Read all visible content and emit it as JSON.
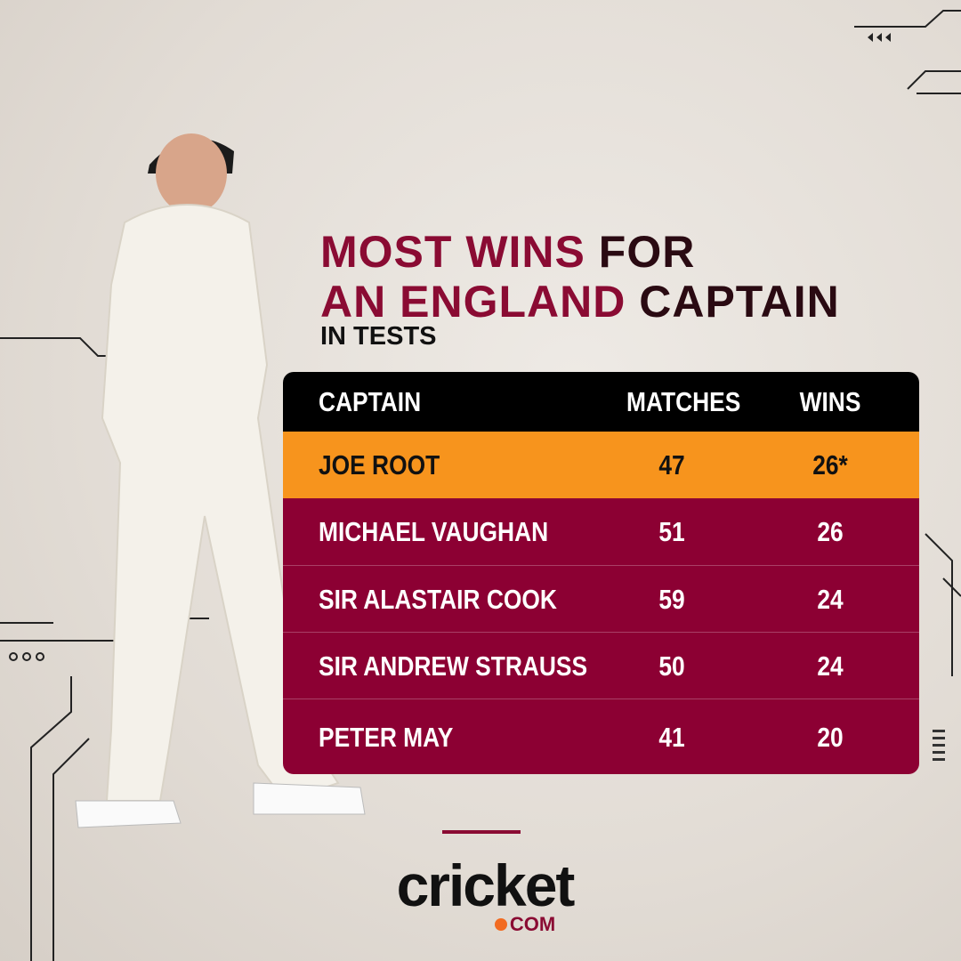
{
  "title": {
    "lines": [
      [
        {
          "text": "MOST WINS",
          "color": "#8a0b33"
        },
        {
          "text": "FOR",
          "color": "#2a0a12"
        }
      ],
      [
        {
          "text": "AN ENGLAND",
          "color": "#8a0b33"
        },
        {
          "text": "CAPTAIN",
          "color": "#2a0a12"
        }
      ]
    ],
    "subtitle": "IN TESTS"
  },
  "table": {
    "header": [
      "CAPTAIN",
      "MATCHES",
      "WINS"
    ],
    "highlight_color": "#f7941d",
    "row_color": "#8c0033",
    "rows": [
      [
        "JOE ROOT",
        47,
        "26*"
      ],
      [
        "MICHAEL VAUGHAN",
        51,
        26
      ],
      [
        "SIR ALASTAIR COOK",
        59,
        24
      ],
      [
        "SIR ANDREW STRAUSS",
        50,
        24
      ],
      [
        "PETER MAY",
        41,
        20
      ]
    ]
  },
  "logo": {
    "name": "cricket",
    "suffix": "COM"
  }
}
